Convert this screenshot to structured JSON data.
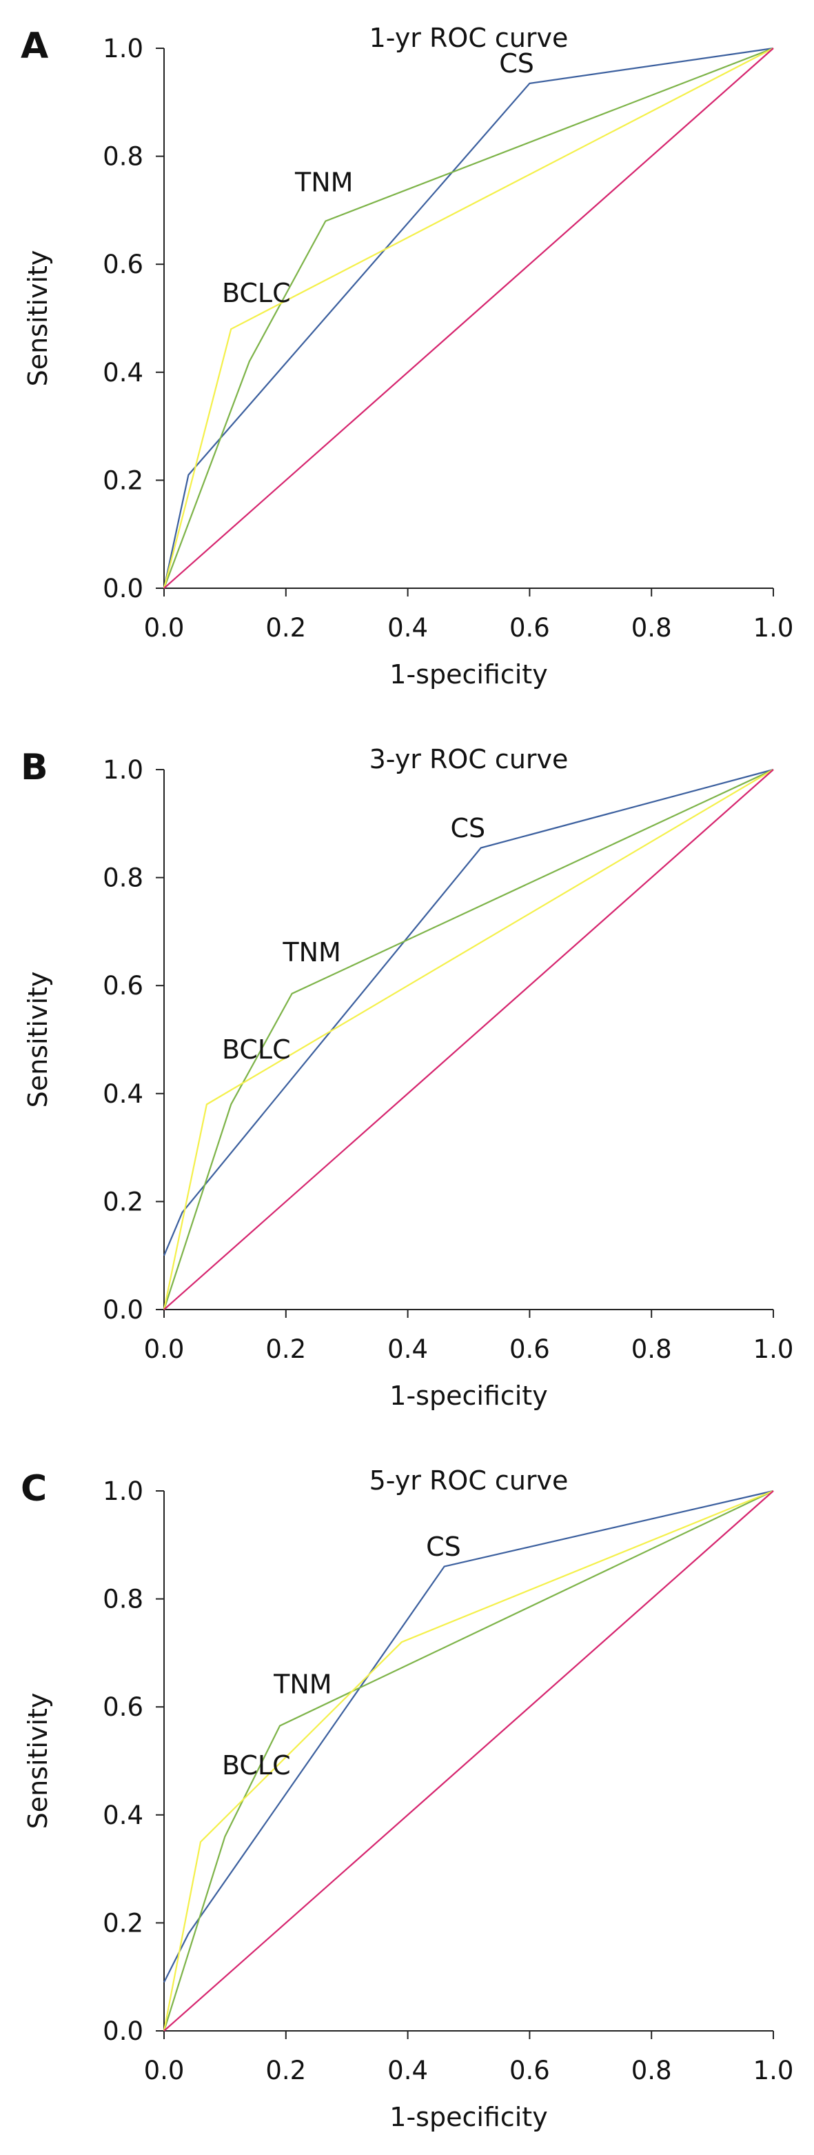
{
  "colors": {
    "CS": "#3b5f9e",
    "TNM": "#7db348",
    "BCLC": "#f4f04a",
    "reference": "#d6246e",
    "axis": "#222222"
  },
  "chart_data": [
    {
      "type": "line",
      "panel_letter": "A",
      "title": "1-yr ROC curve",
      "xlabel": "1-specificity",
      "ylabel": "Sensitivity",
      "xlim": [
        0,
        1
      ],
      "ylim": [
        0,
        1
      ],
      "xticks": [
        "0.0",
        "0.2",
        "0.4",
        "0.6",
        "0.8",
        "1.0"
      ],
      "yticks": [
        "0.0",
        "0.2",
        "0.4",
        "0.6",
        "0.8",
        "1.0"
      ],
      "grid": false,
      "series": [
        {
          "name": "CS",
          "color_key": "CS",
          "points": [
            [
              0,
              0
            ],
            [
              0.04,
              0.21
            ],
            [
              0.6,
              0.935
            ],
            [
              1,
              1
            ]
          ]
        },
        {
          "name": "TNM",
          "color_key": "TNM",
          "points": [
            [
              0,
              0
            ],
            [
              0.14,
              0.42
            ],
            [
              0.265,
              0.68
            ],
            [
              1,
              1
            ]
          ]
        },
        {
          "name": "BCLC",
          "color_key": "BCLC",
          "points": [
            [
              0,
              0
            ],
            [
              0.11,
              0.48
            ],
            [
              1,
              1
            ]
          ]
        },
        {
          "name": "",
          "color_key": "reference",
          "points": [
            [
              0,
              0
            ],
            [
              1,
              1
            ]
          ]
        }
      ],
      "labels": [
        {
          "text": "CS",
          "x": 0.55,
          "y": 0.955
        },
        {
          "text": "TNM",
          "x": 0.215,
          "y": 0.735
        },
        {
          "text": "BCLC",
          "x": 0.095,
          "y": 0.53
        }
      ]
    },
    {
      "type": "line",
      "panel_letter": "B",
      "title": "3-yr ROC curve",
      "xlabel": "1-specificity",
      "ylabel": "Sensitivity",
      "xlim": [
        0,
        1
      ],
      "ylim": [
        0,
        1
      ],
      "xticks": [
        "0.0",
        "0.2",
        "0.4",
        "0.6",
        "0.8",
        "1.0"
      ],
      "yticks": [
        "0.0",
        "0.2",
        "0.4",
        "0.6",
        "0.8",
        "1.0"
      ],
      "grid": false,
      "series": [
        {
          "name": "CS",
          "color_key": "CS",
          "points": [
            [
              0,
              0.1
            ],
            [
              0.03,
              0.18
            ],
            [
              0.52,
              0.855
            ],
            [
              1,
              1
            ]
          ]
        },
        {
          "name": "TNM",
          "color_key": "TNM",
          "points": [
            [
              0,
              0
            ],
            [
              0.11,
              0.38
            ],
            [
              0.21,
              0.585
            ],
            [
              1,
              1
            ]
          ]
        },
        {
          "name": "BCLC",
          "color_key": "BCLC",
          "points": [
            [
              0,
              0
            ],
            [
              0.07,
              0.38
            ],
            [
              1,
              1
            ]
          ]
        },
        {
          "name": "",
          "color_key": "reference",
          "points": [
            [
              0,
              0
            ],
            [
              1,
              1
            ]
          ]
        }
      ],
      "labels": [
        {
          "text": "CS",
          "x": 0.47,
          "y": 0.875
        },
        {
          "text": "TNM",
          "x": 0.195,
          "y": 0.645
        },
        {
          "text": "BCLC",
          "x": 0.095,
          "y": 0.465
        }
      ]
    },
    {
      "type": "line",
      "panel_letter": "C",
      "title": "5-yr ROC curve",
      "xlabel": "1-specificity",
      "ylabel": "Sensitivity",
      "xlim": [
        0,
        1
      ],
      "ylim": [
        0,
        1
      ],
      "xticks": [
        "0.0",
        "0.2",
        "0.4",
        "0.6",
        "0.8",
        "1.0"
      ],
      "yticks": [
        "0.0",
        "0.2",
        "0.4",
        "0.6",
        "0.8",
        "1.0"
      ],
      "grid": false,
      "series": [
        {
          "name": "CS",
          "color_key": "CS",
          "points": [
            [
              0,
              0.09
            ],
            [
              0.04,
              0.18
            ],
            [
              0.46,
              0.86
            ],
            [
              1,
              1
            ]
          ]
        },
        {
          "name": "TNM",
          "color_key": "TNM",
          "points": [
            [
              0,
              0
            ],
            [
              0.1,
              0.36
            ],
            [
              0.19,
              0.565
            ],
            [
              1,
              1
            ]
          ]
        },
        {
          "name": "BCLC",
          "color_key": "BCLC",
          "points": [
            [
              0,
              0
            ],
            [
              0.06,
              0.35
            ],
            [
              0.39,
              0.72
            ],
            [
              1,
              1
            ]
          ]
        },
        {
          "name": "",
          "color_key": "reference",
          "points": [
            [
              0,
              0
            ],
            [
              1,
              1
            ]
          ]
        }
      ],
      "labels": [
        {
          "text": "CS",
          "x": 0.43,
          "y": 0.88
        },
        {
          "text": "TNM",
          "x": 0.18,
          "y": 0.625
        },
        {
          "text": "BCLC",
          "x": 0.095,
          "y": 0.475
        }
      ]
    }
  ]
}
